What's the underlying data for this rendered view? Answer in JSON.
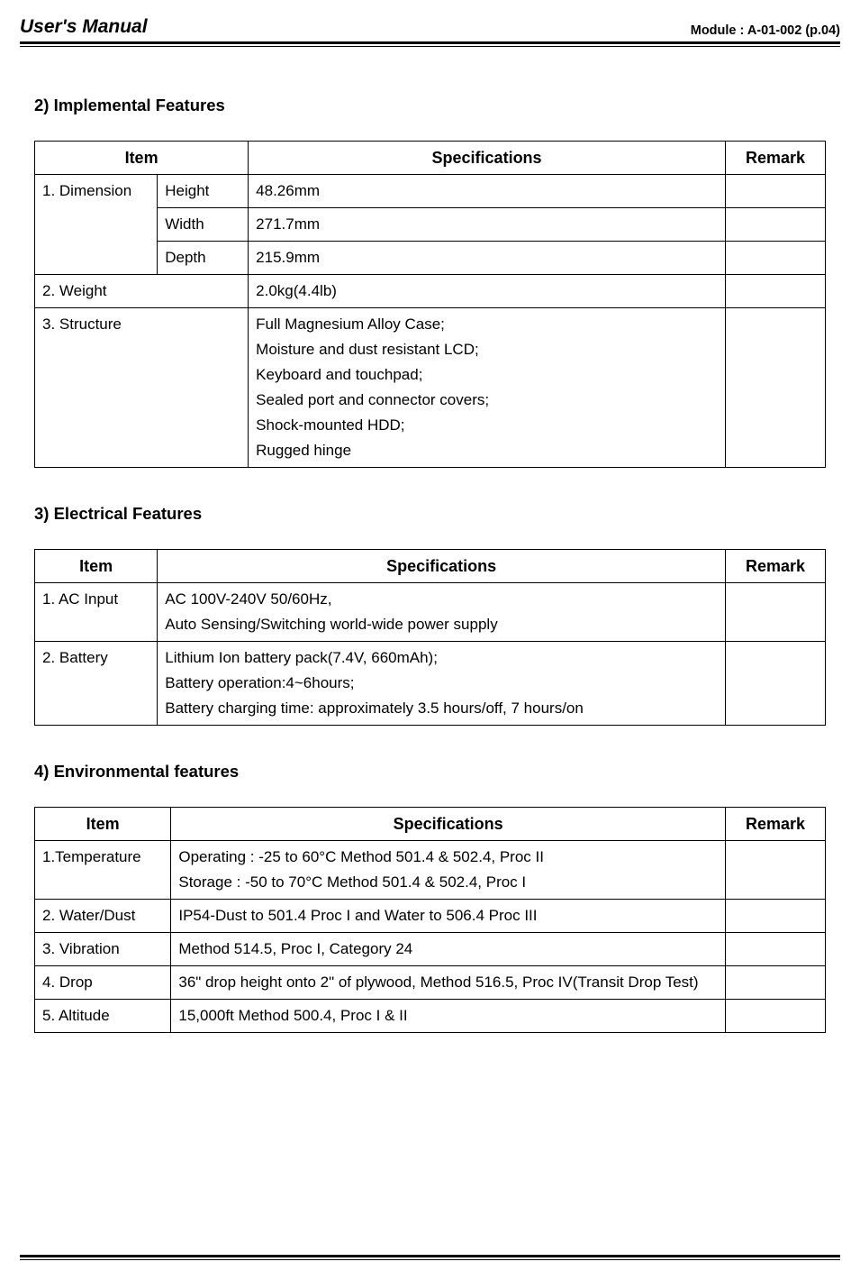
{
  "header": {
    "title_left": "User's Manual",
    "title_right": "Module : A-01-002 (p.04)"
  },
  "sections": {
    "s2": {
      "title": "2) Implemental Features",
      "head_item": "Item",
      "head_spec": "Specifications",
      "head_remark": "Remark",
      "r1_item": "1. Dimension",
      "r1a_sub": "Height",
      "r1a_spec": "48.26mm",
      "r1b_sub": "Width",
      "r1b_spec": "271.7mm",
      "r1c_sub": "Depth",
      "r1c_spec": "215.9mm",
      "r2_item": "2. Weight",
      "r2_spec": "2.0kg(4.4lb)",
      "r3_item": "3. Structure",
      "r3_spec": "Full Magnesium Alloy Case;\nMoisture and dust resistant LCD;\nKeyboard and touchpad;\nSealed port and connector covers;\nShock-mounted HDD;\nRugged hinge"
    },
    "s3": {
      "title": "3) Electrical Features",
      "head_item": "Item",
      "head_spec": "Specifications",
      "head_remark": "Remark",
      "r1_item": "1. AC Input",
      "r1_spec": "AC 100V-240V 50/60Hz,\nAuto Sensing/Switching world-wide power supply",
      "r2_item": "2. Battery",
      "r2_spec": "Lithium Ion battery pack(7.4V, 660mAh);\nBattery operation:4~6hours;\nBattery charging time: approximately 3.5 hours/off, 7 hours/on"
    },
    "s4": {
      "title": "4) Environmental features",
      "head_item": "Item",
      "head_spec": "Specifications",
      "head_remark": "Remark",
      "r1_item": "1.Temperature",
      "r1_spec": "Operating : -25 to 60°C Method 501.4 & 502.4, Proc II\nStorage : -50 to 70°C Method 501.4 & 502.4, Proc I",
      "r2_item": "2. Water/Dust",
      "r2_spec": "IP54-Dust to 501.4 Proc I and Water to 506.4 Proc III",
      "r3_item": "3. Vibration",
      "r3_spec": "Method 514.5, Proc I, Category 24",
      "r4_item": "4. Drop",
      "r4_spec": "36\" drop height onto 2\" of plywood, Method 516.5, Proc IV(Transit Drop Test)",
      "r5_item": "5. Altitude",
      "r5_spec": "15,000ft Method 500.4, Proc I & II"
    }
  },
  "layout": {
    "t1_cols": {
      "c1": 135,
      "c2": 100,
      "c3": 525,
      "c4": 110
    },
    "t2_cols": {
      "c1": 135,
      "c2": 625,
      "c3": 110
    },
    "t3_cols": {
      "c1": 150,
      "c2": 610,
      "c3": 110
    }
  }
}
